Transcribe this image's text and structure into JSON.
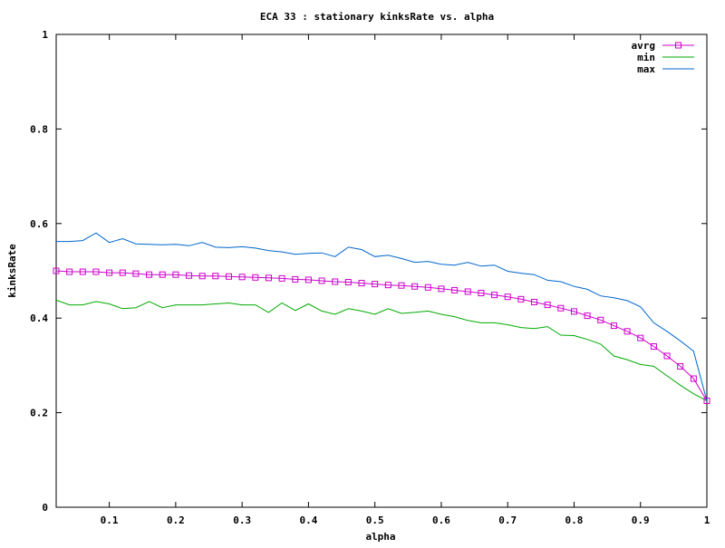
{
  "chart_data": {
    "type": "line",
    "title": "ECA 33 : stationary kinksRate vs. alpha",
    "xlabel": "alpha",
    "ylabel": "kinksRate",
    "xlim": [
      0.02,
      1.0
    ],
    "ylim": [
      0,
      1
    ],
    "x_ticks": [
      "0.1",
      "0.2",
      "0.3",
      "0.4",
      "0.5",
      "0.6",
      "0.7",
      "0.8",
      "0.9",
      "1"
    ],
    "y_ticks": [
      "0",
      "0.2",
      "0.4",
      "0.6",
      "0.8",
      "1"
    ],
    "grid": false,
    "legend_position": "top-right",
    "x": [
      0.02,
      0.04,
      0.06,
      0.08,
      0.1,
      0.12,
      0.14,
      0.16,
      0.18,
      0.2,
      0.22,
      0.24,
      0.26,
      0.28,
      0.3,
      0.32,
      0.34,
      0.36,
      0.38,
      0.4,
      0.42,
      0.44,
      0.46,
      0.48,
      0.5,
      0.52,
      0.54,
      0.56,
      0.58,
      0.6,
      0.62,
      0.64,
      0.66,
      0.68,
      0.7,
      0.72,
      0.74,
      0.76,
      0.78,
      0.8,
      0.82,
      0.84,
      0.86,
      0.88,
      0.9,
      0.92,
      0.94,
      0.96,
      0.98,
      1.0
    ],
    "series": [
      {
        "name": "avrg",
        "color": "#cc00cc",
        "marker": "square",
        "values": [
          0.5,
          0.498,
          0.498,
          0.498,
          0.496,
          0.496,
          0.494,
          0.492,
          0.492,
          0.492,
          0.49,
          0.489,
          0.489,
          0.488,
          0.487,
          0.486,
          0.485,
          0.484,
          0.482,
          0.481,
          0.479,
          0.477,
          0.476,
          0.474,
          0.472,
          0.47,
          0.469,
          0.467,
          0.465,
          0.462,
          0.459,
          0.456,
          0.453,
          0.449,
          0.445,
          0.44,
          0.434,
          0.428,
          0.421,
          0.414,
          0.405,
          0.396,
          0.384,
          0.372,
          0.358,
          0.34,
          0.32,
          0.298,
          0.272,
          0.225
        ]
      },
      {
        "name": "min",
        "color": "#00aa00",
        "values": [
          0.438,
          0.428,
          0.428,
          0.435,
          0.43,
          0.42,
          0.422,
          0.435,
          0.422,
          0.428,
          0.428,
          0.428,
          0.43,
          0.432,
          0.428,
          0.428,
          0.412,
          0.432,
          0.416,
          0.43,
          0.415,
          0.408,
          0.42,
          0.415,
          0.408,
          0.42,
          0.41,
          0.412,
          0.415,
          0.408,
          0.403,
          0.395,
          0.39,
          0.39,
          0.386,
          0.38,
          0.378,
          0.382,
          0.364,
          0.363,
          0.355,
          0.345,
          0.32,
          0.312,
          0.302,
          0.298,
          0.278,
          0.258,
          0.24,
          0.225
        ]
      },
      {
        "name": "max",
        "color": "#0066cc",
        "values": [
          0.562,
          0.562,
          0.564,
          0.58,
          0.56,
          0.568,
          0.557,
          0.556,
          0.555,
          0.556,
          0.553,
          0.56,
          0.55,
          0.549,
          0.551,
          0.548,
          0.543,
          0.54,
          0.535,
          0.537,
          0.538,
          0.53,
          0.55,
          0.545,
          0.53,
          0.533,
          0.526,
          0.518,
          0.52,
          0.514,
          0.512,
          0.518,
          0.51,
          0.512,
          0.499,
          0.495,
          0.492,
          0.48,
          0.477,
          0.467,
          0.461,
          0.447,
          0.443,
          0.437,
          0.424,
          0.39,
          0.372,
          0.352,
          0.33,
          0.225
        ]
      }
    ]
  }
}
